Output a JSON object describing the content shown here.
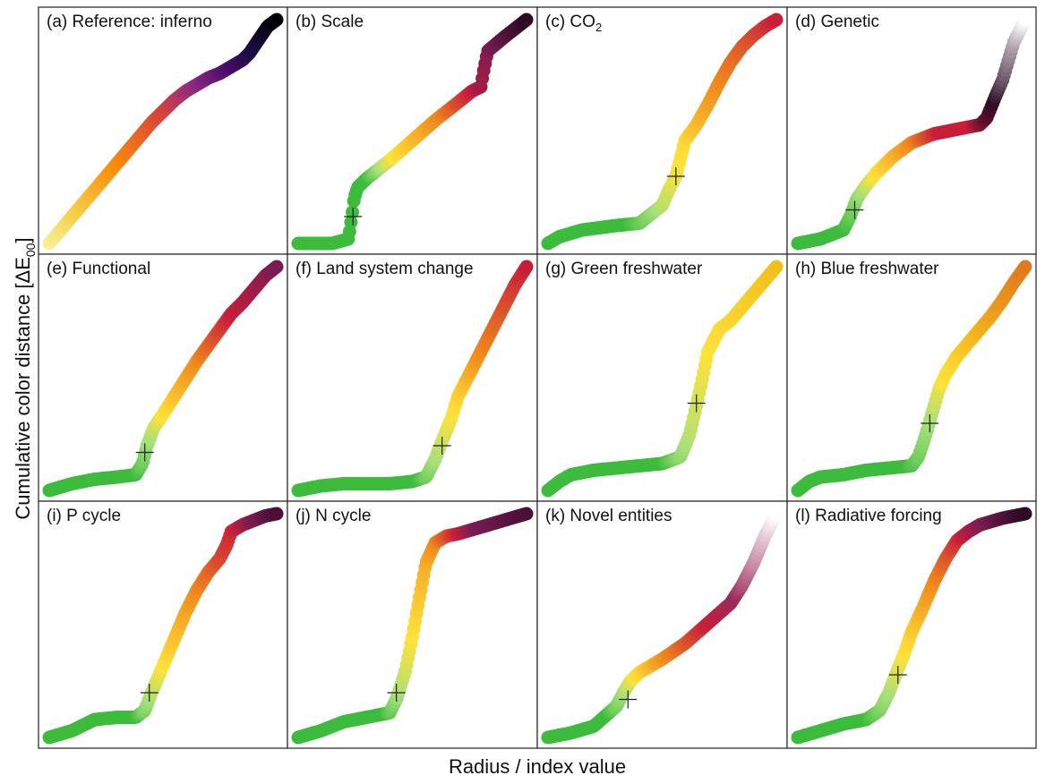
{
  "figure": {
    "ylabel": "Cumulative color distance [ΔE",
    "ylabel_sub": "00",
    "ylabel_end": "]",
    "xlabel": "Radius / index value"
  },
  "colors": {
    "green": "#3cbb3c",
    "green_light": "#a6e07a",
    "yellow": "#ffe23a",
    "orange": "#f08a1c",
    "red": "#c81e3a",
    "maroon": "#7a1c52",
    "dark": "#2d0a25",
    "white": "#ffffff",
    "frame": "#222222",
    "marker": "#222222"
  },
  "chart_data": [
    {
      "type": "line",
      "title": "(a) Reference: inferno",
      "x": [
        0,
        0.05,
        0.1,
        0.15,
        0.2,
        0.25,
        0.3,
        0.35,
        0.4,
        0.45,
        0.5,
        0.55,
        0.6,
        0.65,
        0.7,
        0.75,
        0.8,
        0.85,
        0.88,
        0.92,
        0.96,
        1.0
      ],
      "y": [
        0,
        0.06,
        0.12,
        0.18,
        0.24,
        0.3,
        0.36,
        0.42,
        0.48,
        0.54,
        0.59,
        0.64,
        0.68,
        0.71,
        0.74,
        0.76,
        0.79,
        0.82,
        0.85,
        0.91,
        0.97,
        1.0
      ],
      "colors": [
        {
          "p": 0,
          "c": "#f6f39a"
        },
        {
          "p": 0.12,
          "c": "#f6d04a"
        },
        {
          "p": 0.3,
          "c": "#f98c0a"
        },
        {
          "p": 0.5,
          "c": "#d8443b"
        },
        {
          "p": 0.65,
          "c": "#8c2981"
        },
        {
          "p": 0.8,
          "c": "#4a0c6b"
        },
        {
          "p": 0.9,
          "c": "#1b0c41"
        },
        {
          "p": 1.0,
          "c": "#000004"
        }
      ]
    },
    {
      "type": "line",
      "title": "(b) Scale",
      "x": [
        0,
        0.15,
        0.22,
        0.235,
        0.245,
        0.26,
        0.3,
        0.4,
        0.5,
        0.6,
        0.7,
        0.76,
        0.8,
        0.81,
        0.83,
        0.9,
        1.0
      ],
      "y": [
        0,
        0.0,
        0.02,
        0.12,
        0.2,
        0.25,
        0.29,
        0.37,
        0.46,
        0.55,
        0.63,
        0.68,
        0.7,
        0.76,
        0.86,
        0.92,
        1.0
      ],
      "marker": {
        "x": 0.24,
        "y": 0.12
      },
      "colors": [
        {
          "p": 0,
          "c": "#3cbb3c"
        },
        {
          "p": 0.3,
          "c": "#3cbb3c"
        },
        {
          "p": 0.36,
          "c": "#a6e07a"
        },
        {
          "p": 0.42,
          "c": "#ffe23a"
        },
        {
          "p": 0.62,
          "c": "#f08a1c"
        },
        {
          "p": 0.76,
          "c": "#c81e3a"
        },
        {
          "p": 0.84,
          "c": "#7a1c52"
        },
        {
          "p": 1.0,
          "c": "#2d0a25"
        }
      ]
    },
    {
      "type": "line",
      "title": "(c) CO",
      "title_sub": "2",
      "x": [
        0,
        0.05,
        0.15,
        0.3,
        0.4,
        0.45,
        0.5,
        0.53,
        0.56,
        0.58,
        0.6,
        0.65,
        0.7,
        0.75,
        0.8,
        0.85,
        0.9,
        0.95,
        1.0
      ],
      "y": [
        0,
        0.03,
        0.06,
        0.08,
        0.09,
        0.13,
        0.17,
        0.24,
        0.3,
        0.38,
        0.46,
        0.53,
        0.62,
        0.72,
        0.81,
        0.88,
        0.93,
        0.97,
        1.0
      ],
      "marker": {
        "x": 0.56,
        "y": 0.3
      },
      "colors": [
        {
          "p": 0,
          "c": "#3cbb3c"
        },
        {
          "p": 0.35,
          "c": "#3cbb3c"
        },
        {
          "p": 0.48,
          "c": "#a6e07a"
        },
        {
          "p": 0.58,
          "c": "#ffe23a"
        },
        {
          "p": 0.75,
          "c": "#f08a1c"
        },
        {
          "p": 1.0,
          "c": "#c81e3a"
        }
      ]
    },
    {
      "type": "line",
      "title": "(d) Genetic",
      "x": [
        0,
        0.1,
        0.2,
        0.23,
        0.26,
        0.3,
        0.35,
        0.42,
        0.5,
        0.6,
        0.7,
        0.75,
        0.8,
        0.83,
        0.87,
        0.9,
        0.95,
        1.0
      ],
      "y": [
        0,
        0.02,
        0.06,
        0.12,
        0.2,
        0.26,
        0.32,
        0.39,
        0.45,
        0.49,
        0.51,
        0.52,
        0.53,
        0.56,
        0.66,
        0.73,
        0.9,
        1.0
      ],
      "marker": {
        "x": 0.25,
        "y": 0.15
      },
      "colors": [
        {
          "p": 0,
          "c": "#3cbb3c"
        },
        {
          "p": 0.2,
          "c": "#3cbb3c"
        },
        {
          "p": 0.28,
          "c": "#a6e07a"
        },
        {
          "p": 0.34,
          "c": "#ffe23a"
        },
        {
          "p": 0.5,
          "c": "#f08a1c"
        },
        {
          "p": 0.62,
          "c": "#c81e3a"
        },
        {
          "p": 0.76,
          "c": "#c81e3a"
        },
        {
          "p": 0.86,
          "c": "#2d0a25"
        },
        {
          "p": 1.0,
          "c": "#ffffff"
        }
      ]
    },
    {
      "type": "line",
      "title": "(e) Functional",
      "x": [
        0,
        0.1,
        0.2,
        0.3,
        0.38,
        0.41,
        0.43,
        0.46,
        0.5,
        0.55,
        0.6,
        0.65,
        0.7,
        0.75,
        0.8,
        0.85,
        0.9,
        0.95,
        1.0
      ],
      "y": [
        0,
        0.03,
        0.05,
        0.06,
        0.07,
        0.12,
        0.2,
        0.28,
        0.34,
        0.42,
        0.5,
        0.58,
        0.65,
        0.72,
        0.79,
        0.84,
        0.9,
        0.96,
        1.0
      ],
      "marker": {
        "x": 0.42,
        "y": 0.17
      },
      "colors": [
        {
          "p": 0,
          "c": "#3cbb3c"
        },
        {
          "p": 0.38,
          "c": "#3cbb3c"
        },
        {
          "p": 0.44,
          "c": "#a6e07a"
        },
        {
          "p": 0.5,
          "c": "#ffe23a"
        },
        {
          "p": 0.65,
          "c": "#f08a1c"
        },
        {
          "p": 0.8,
          "c": "#c81e3a"
        },
        {
          "p": 1.0,
          "c": "#7a1c52"
        }
      ]
    },
    {
      "type": "line",
      "title": "(f) Land system change",
      "x": [
        0,
        0.1,
        0.2,
        0.3,
        0.4,
        0.5,
        0.56,
        0.6,
        0.63,
        0.67,
        0.7,
        0.75,
        0.8,
        0.85,
        0.9,
        0.95,
        1.0
      ],
      "y": [
        0,
        0.02,
        0.03,
        0.03,
        0.03,
        0.04,
        0.06,
        0.14,
        0.22,
        0.32,
        0.42,
        0.52,
        0.62,
        0.72,
        0.82,
        0.92,
        1.0
      ],
      "marker": {
        "x": 0.63,
        "y": 0.2
      },
      "colors": [
        {
          "p": 0,
          "c": "#3cbb3c"
        },
        {
          "p": 0.52,
          "c": "#3cbb3c"
        },
        {
          "p": 0.6,
          "c": "#a6e07a"
        },
        {
          "p": 0.68,
          "c": "#ffe23a"
        },
        {
          "p": 0.8,
          "c": "#f08a1c"
        },
        {
          "p": 1.0,
          "c": "#c81e3a"
        }
      ]
    },
    {
      "type": "line",
      "title": "(g) Green freshwater",
      "x": [
        0,
        0.05,
        0.1,
        0.2,
        0.3,
        0.4,
        0.5,
        0.58,
        0.62,
        0.65,
        0.68,
        0.7,
        0.75,
        0.8,
        0.85,
        0.9,
        0.95,
        1.0
      ],
      "y": [
        0,
        0.04,
        0.07,
        0.09,
        0.1,
        0.11,
        0.12,
        0.15,
        0.25,
        0.38,
        0.52,
        0.62,
        0.72,
        0.76,
        0.82,
        0.88,
        0.94,
        1.0
      ],
      "marker": {
        "x": 0.65,
        "y": 0.39
      },
      "colors": [
        {
          "p": 0,
          "c": "#3cbb3c"
        },
        {
          "p": 0.5,
          "c": "#3cbb3c"
        },
        {
          "p": 0.6,
          "c": "#a6e07a"
        },
        {
          "p": 0.7,
          "c": "#ffe23a"
        },
        {
          "p": 1.0,
          "c": "#f2c01a"
        }
      ]
    },
    {
      "type": "line",
      "title": "(h) Blue freshwater",
      "x": [
        0,
        0.05,
        0.1,
        0.2,
        0.3,
        0.4,
        0.5,
        0.53,
        0.56,
        0.6,
        0.62,
        0.65,
        0.7,
        0.75,
        0.8,
        0.85,
        0.9,
        0.95,
        1.0
      ],
      "y": [
        0,
        0.04,
        0.06,
        0.07,
        0.09,
        0.1,
        0.11,
        0.15,
        0.24,
        0.38,
        0.45,
        0.52,
        0.6,
        0.66,
        0.72,
        0.78,
        0.85,
        0.93,
        1.0
      ],
      "marker": {
        "x": 0.58,
        "y": 0.3
      },
      "colors": [
        {
          "p": 0,
          "c": "#3cbb3c"
        },
        {
          "p": 0.48,
          "c": "#3cbb3c"
        },
        {
          "p": 0.58,
          "c": "#a6e07a"
        },
        {
          "p": 0.64,
          "c": "#ffe23a"
        },
        {
          "p": 0.8,
          "c": "#f2b21a"
        },
        {
          "p": 1.0,
          "c": "#e07a1c"
        }
      ]
    },
    {
      "type": "line",
      "title": "(i) P cycle",
      "x": [
        0,
        0.1,
        0.2,
        0.3,
        0.38,
        0.42,
        0.45,
        0.5,
        0.55,
        0.6,
        0.65,
        0.7,
        0.75,
        0.78,
        0.8,
        0.85,
        0.9,
        0.95,
        1.0
      ],
      "y": [
        0,
        0.03,
        0.08,
        0.09,
        0.09,
        0.12,
        0.2,
        0.32,
        0.44,
        0.56,
        0.66,
        0.74,
        0.8,
        0.86,
        0.92,
        0.95,
        0.97,
        0.99,
        1.0
      ],
      "marker": {
        "x": 0.44,
        "y": 0.2
      },
      "colors": [
        {
          "p": 0,
          "c": "#3cbb3c"
        },
        {
          "p": 0.38,
          "c": "#3cbb3c"
        },
        {
          "p": 0.44,
          "c": "#a6e07a"
        },
        {
          "p": 0.5,
          "c": "#ffe23a"
        },
        {
          "p": 0.65,
          "c": "#f08a1c"
        },
        {
          "p": 0.82,
          "c": "#c81e3a"
        },
        {
          "p": 0.9,
          "c": "#7a1c52"
        },
        {
          "p": 1.0,
          "c": "#4d0f38"
        }
      ]
    },
    {
      "type": "line",
      "title": "(j) N cycle",
      "x": [
        0,
        0.1,
        0.2,
        0.3,
        0.35,
        0.4,
        0.43,
        0.47,
        0.5,
        0.53,
        0.56,
        0.6,
        0.65,
        0.7,
        0.8,
        0.9,
        1.0
      ],
      "y": [
        0,
        0.03,
        0.07,
        0.09,
        0.1,
        0.11,
        0.17,
        0.3,
        0.45,
        0.62,
        0.78,
        0.87,
        0.9,
        0.91,
        0.94,
        0.97,
        1.0
      ],
      "marker": {
        "x": 0.43,
        "y": 0.2
      },
      "colors": [
        {
          "p": 0,
          "c": "#3cbb3c"
        },
        {
          "p": 0.38,
          "c": "#3cbb3c"
        },
        {
          "p": 0.44,
          "c": "#a6e07a"
        },
        {
          "p": 0.5,
          "c": "#ffe23a"
        },
        {
          "p": 0.6,
          "c": "#f08a1c"
        },
        {
          "p": 0.7,
          "c": "#c81e3a"
        },
        {
          "p": 0.78,
          "c": "#7a1c52"
        },
        {
          "p": 1.0,
          "c": "#4d0f38"
        }
      ]
    },
    {
      "type": "line",
      "title": "(k) Novel entities",
      "x": [
        0,
        0.1,
        0.2,
        0.3,
        0.33,
        0.36,
        0.4,
        0.5,
        0.6,
        0.7,
        0.8,
        0.85,
        0.9,
        0.95,
        1.0
      ],
      "y": [
        0,
        0.02,
        0.05,
        0.14,
        0.2,
        0.25,
        0.29,
        0.35,
        0.42,
        0.51,
        0.6,
        0.68,
        0.78,
        0.9,
        1.0
      ],
      "marker": {
        "x": 0.35,
        "y": 0.17
      },
      "colors": [
        {
          "p": 0,
          "c": "#3cbb3c"
        },
        {
          "p": 0.26,
          "c": "#3cbb3c"
        },
        {
          "p": 0.33,
          "c": "#a6e07a"
        },
        {
          "p": 0.38,
          "c": "#ffe23a"
        },
        {
          "p": 0.52,
          "c": "#f08a1c"
        },
        {
          "p": 0.7,
          "c": "#c81e3a"
        },
        {
          "p": 0.82,
          "c": "#9a2a5a"
        },
        {
          "p": 1.0,
          "c": "#ffffff"
        }
      ]
    },
    {
      "type": "line",
      "title": "(l) Radiative forcing",
      "x": [
        0,
        0.1,
        0.2,
        0.3,
        0.36,
        0.4,
        0.43,
        0.47,
        0.5,
        0.55,
        0.6,
        0.65,
        0.7,
        0.75,
        0.8,
        0.9,
        1.0
      ],
      "y": [
        0,
        0.03,
        0.06,
        0.08,
        0.12,
        0.2,
        0.28,
        0.38,
        0.47,
        0.58,
        0.7,
        0.8,
        0.88,
        0.92,
        0.95,
        0.98,
        1.0
      ],
      "marker": {
        "x": 0.44,
        "y": 0.28
      },
      "colors": [
        {
          "p": 0,
          "c": "#3cbb3c"
        },
        {
          "p": 0.3,
          "c": "#3cbb3c"
        },
        {
          "p": 0.4,
          "c": "#a6e07a"
        },
        {
          "p": 0.47,
          "c": "#ffe23a"
        },
        {
          "p": 0.6,
          "c": "#f08a1c"
        },
        {
          "p": 0.72,
          "c": "#c81e3a"
        },
        {
          "p": 0.82,
          "c": "#7a1c52"
        },
        {
          "p": 1.0,
          "c": "#2d0a25"
        }
      ]
    }
  ]
}
